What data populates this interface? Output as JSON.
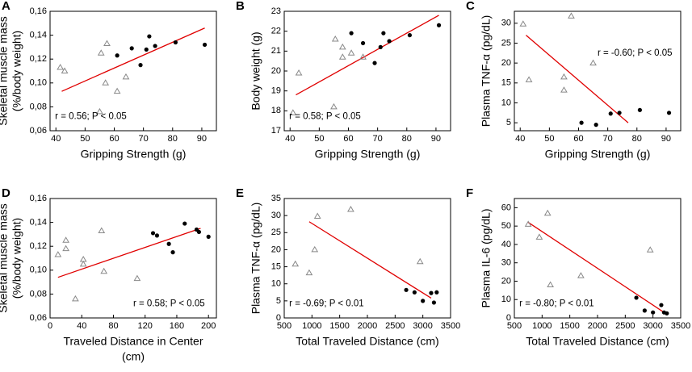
{
  "chart_data": [
    {
      "type": "scatter",
      "label": "A",
      "ylabel": [
        "Skeletal muscle mass",
        "(%/body weight)"
      ],
      "xlabel": [
        "Gripping Strength (g)"
      ],
      "annotation": "r = 0.56; P < 0.05",
      "xlim": [
        38,
        95
      ],
      "xticks": [
        40,
        50,
        60,
        70,
        80,
        90
      ],
      "ylim": [
        0.06,
        0.16
      ],
      "yticks": [
        {
          "value": 0.06,
          "label": "0,06"
        },
        {
          "value": 0.08,
          "label": "0,08"
        },
        {
          "value": 0.1,
          "label": "0,10"
        },
        {
          "value": 0.12,
          "label": "0,12"
        },
        {
          "value": 0.14,
          "label": "0,14"
        },
        {
          "value": 0.16,
          "label": "0,16"
        }
      ],
      "series": [
        {
          "marker": "triangle",
          "color": "#888888",
          "x": [
            41.5,
            43,
            55,
            55.5,
            57,
            57.5,
            61,
            64
          ],
          "values": [
            0.113,
            0.11,
            0.076,
            0.125,
            0.1,
            0.133,
            0.093,
            0.105
          ]
        },
        {
          "marker": "circle",
          "color": "#000000",
          "x": [
            61,
            66,
            69,
            71,
            72,
            74,
            81,
            91
          ],
          "values": [
            0.123,
            0.129,
            0.115,
            0.128,
            0.139,
            0.131,
            0.134,
            0.132
          ]
        }
      ],
      "fit": {
        "color": "#e00000",
        "x": [
          42,
          91
        ],
        "values": [
          0.093,
          0.146
        ]
      }
    },
    {
      "type": "scatter",
      "label": "B",
      "ylabel": [
        "Body weight (g)"
      ],
      "xlabel": [
        "Gripping Strength (g)"
      ],
      "annotation": "r = 0.58; P < 0.05",
      "xlim": [
        38,
        95
      ],
      "xticks": [
        40,
        50,
        60,
        70,
        80,
        90
      ],
      "ylim": [
        17,
        23
      ],
      "yticks": [
        17,
        18,
        19,
        20,
        21,
        22,
        23
      ],
      "series": [
        {
          "marker": "triangle",
          "color": "#888888",
          "x": [
            41,
            43,
            55,
            55.5,
            58,
            58,
            61,
            65
          ],
          "values": [
            17.9,
            19.9,
            18.2,
            21.6,
            20.7,
            21.2,
            20.9,
            20.7
          ]
        },
        {
          "marker": "circle",
          "color": "#000000",
          "x": [
            61,
            65,
            69,
            71,
            72,
            74,
            81,
            91
          ],
          "values": [
            21.9,
            21.4,
            20.4,
            21.2,
            21.9,
            21.5,
            21.8,
            22.3
          ]
        }
      ],
      "fit": {
        "color": "#e00000",
        "x": [
          42,
          91
        ],
        "values": [
          18.8,
          22.8
        ]
      }
    },
    {
      "type": "scatter",
      "label": "C",
      "ylabel": [
        "Plasma TNF-α (pg/dL)"
      ],
      "xlabel": [
        "Gripping Strength (g)"
      ],
      "annotation": "r = -0.60; P < 0.05",
      "xlim": [
        38,
        95
      ],
      "xticks": [
        40,
        50,
        60,
        70,
        80,
        90
      ],
      "ylim": [
        3,
        33
      ],
      "yticks": [
        5,
        10,
        15,
        20,
        25,
        30
      ],
      "series": [
        {
          "marker": "triangle",
          "color": "#888888",
          "x": [
            41,
            43,
            55,
            55,
            57.5,
            65
          ],
          "values": [
            29.8,
            15.8,
            16.5,
            13.2,
            31.8,
            20.0
          ]
        },
        {
          "marker": "circle",
          "color": "#000000",
          "x": [
            61,
            66,
            71,
            74,
            81,
            91
          ],
          "values": [
            5.0,
            4.5,
            7.3,
            7.5,
            8.2,
            7.5
          ]
        }
      ],
      "fit": {
        "color": "#e00000",
        "x": [
          42,
          77
        ],
        "values": [
          27,
          5
        ]
      }
    },
    {
      "type": "scatter",
      "label": "D",
      "ylabel": [
        "Skeletal muscle mass",
        "(%/body weight)"
      ],
      "xlabel": [
        "Traveled Distance in Center",
        "(cm)"
      ],
      "annotation": "r = 0.58; P < 0.05",
      "xlim": [
        0,
        210
      ],
      "xticks": [
        0,
        40,
        80,
        120,
        160,
        200
      ],
      "ylim": [
        0.06,
        0.16
      ],
      "yticks": [
        {
          "value": 0.06,
          "label": "0,06"
        },
        {
          "value": 0.08,
          "label": "0,08"
        },
        {
          "value": 0.1,
          "label": "0,10"
        },
        {
          "value": 0.12,
          "label": "0,12"
        },
        {
          "value": 0.14,
          "label": "0,14"
        },
        {
          "value": 0.16,
          "label": "0,16"
        }
      ],
      "series": [
        {
          "marker": "triangle",
          "color": "#888888",
          "x": [
            10,
            20,
            20,
            32,
            42,
            42,
            65,
            68,
            110
          ],
          "values": [
            0.113,
            0.125,
            0.118,
            0.076,
            0.109,
            0.105,
            0.133,
            0.099,
            0.093
          ]
        },
        {
          "marker": "circle",
          "color": "#000000",
          "x": [
            130,
            135,
            150,
            155,
            170,
            185,
            188,
            200
          ],
          "values": [
            0.131,
            0.129,
            0.122,
            0.115,
            0.139,
            0.134,
            0.132,
            0.128
          ]
        }
      ],
      "fit": {
        "color": "#e00000",
        "x": [
          10,
          190
        ],
        "values": [
          0.094,
          0.135
        ]
      }
    },
    {
      "type": "scatter",
      "label": "E",
      "ylabel": [
        "Plasma TNF-α (pg/dL)"
      ],
      "xlabel": [
        "Total Traveled Distance (cm)"
      ],
      "annotation": "r = -0.69; P < 0.01",
      "xlim": [
        500,
        3500
      ],
      "xticks": [
        500,
        1000,
        1500,
        2000,
        2500,
        3000,
        3500
      ],
      "ylim": [
        0,
        35
      ],
      "yticks": [
        0,
        5,
        10,
        15,
        20,
        25,
        30,
        35
      ],
      "series": [
        {
          "marker": "triangle",
          "color": "#888888",
          "x": [
            700,
            950,
            1050,
            1100,
            1700,
            2950
          ],
          "values": [
            15.8,
            13.2,
            20.0,
            29.8,
            31.8,
            16.5
          ]
        },
        {
          "marker": "circle",
          "color": "#000000",
          "x": [
            2700,
            2850,
            3000,
            3150,
            3200,
            3250
          ],
          "values": [
            8.2,
            7.5,
            5.0,
            7.3,
            4.5,
            7.5
          ]
        }
      ],
      "fit": {
        "color": "#e00000",
        "x": [
          950,
          3150
        ],
        "values": [
          28.2,
          5.8
        ]
      }
    },
    {
      "type": "scatter",
      "label": "F",
      "ylabel": [
        "Plasma IL-6 (pg/dL)"
      ],
      "xlabel": [
        "Total Traveled Distance (cm)"
      ],
      "annotation": "r = -0.80; P < 0.01",
      "xlim": [
        500,
        3500
      ],
      "xticks": [
        500,
        1000,
        1500,
        2000,
        2500,
        3000,
        3500
      ],
      "ylim": [
        0,
        65
      ],
      "yticks": [
        0,
        10,
        20,
        30,
        40,
        50,
        60
      ],
      "series": [
        {
          "marker": "triangle",
          "color": "#888888",
          "x": [
            750,
            950,
            1100,
            1150,
            1700,
            2950
          ],
          "values": [
            51,
            44,
            57,
            18,
            23,
            37
          ]
        },
        {
          "marker": "circle",
          "color": "#000000",
          "x": [
            2700,
            2850,
            3000,
            3150,
            3200,
            3250
          ],
          "values": [
            11,
            4,
            3,
            7,
            3,
            2.5
          ]
        }
      ],
      "fit": {
        "color": "#e00000",
        "x": [
          750,
          3200
        ],
        "values": [
          52,
          3
        ]
      }
    }
  ]
}
